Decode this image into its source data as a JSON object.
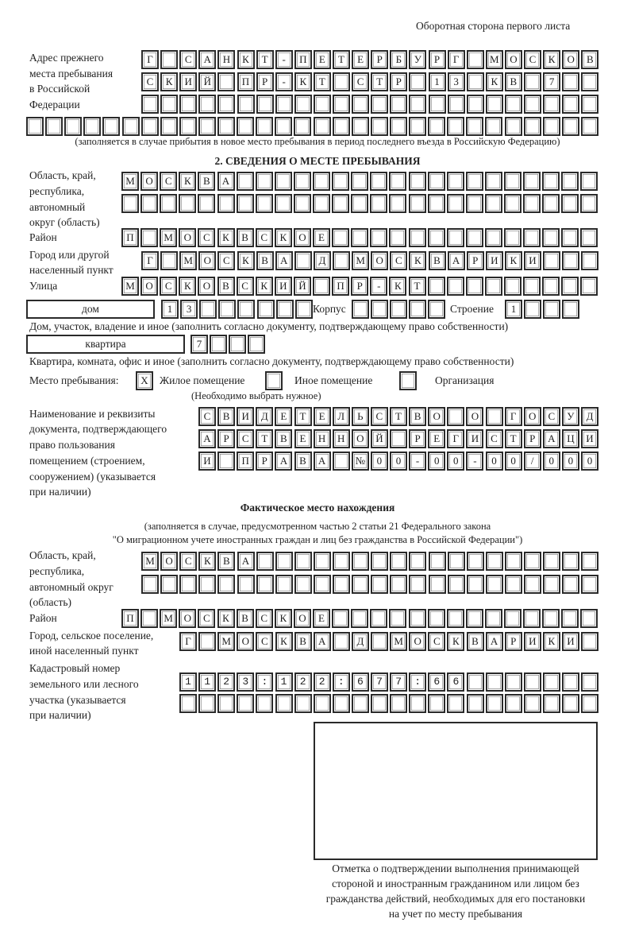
{
  "header": {
    "page_side": "Оборотная сторона первого листа"
  },
  "previous_address": {
    "label": [
      "Адрес прежнего",
      "места пребывания",
      "в Российской",
      "Федерации"
    ],
    "rows": [
      "Г САНКТ-ПЕТЕРБУРГ МОСКОВ",
      "СКИЙ ПР-КТ СТР 13 КВ 7",
      "",
      ""
    ],
    "note": "(заполняется в случае прибытия в новое место пребывания в период последнего въезда в Российскую Федерацию)"
  },
  "stay_place": {
    "section_title": "2. СВЕДЕНИЯ О МЕСТЕ ПРЕБЫВАНИЯ",
    "region_label": [
      "Область, край,",
      "республика,",
      "автономный",
      "округ (область)"
    ],
    "region_rows": [
      "МОСКВА",
      ""
    ],
    "district_label": "Район",
    "district": "П МОСКВСКОЕ",
    "city_label": [
      "Город или другой",
      "населенный пункт"
    ],
    "city": "Г МОСКВА Д МОСКВАРИКИ",
    "street_label": "Улица",
    "street": "МОСКОВСКИЙ ПР-КТ",
    "house_type": "дом",
    "house": "13",
    "building_label": "Корпус",
    "building": "",
    "structure_label": "Строение",
    "structure": "1",
    "house_note": "Дом, участок, владение и иное (заполнить согласно документу, подтверждающему право собственности)",
    "apartment_type": "квартира",
    "apartment": "7",
    "apartment_note": "Квартира, комната, офис и иное (заполнить согласно документу, подтверждающему право собственности)",
    "place_label": "Место пребывания:",
    "options": [
      {
        "label": "Жилое помещение",
        "mark": "X"
      },
      {
        "label": "Иное помещение",
        "mark": ""
      },
      {
        "label": "Организация",
        "mark": ""
      }
    ],
    "choose_note": "(Необходимо выбрать нужное)",
    "document_label": [
      "Наименование и реквизиты",
      "документа, подтверждающего",
      "право пользования",
      "помещением (строением,",
      "сооружением) (указывается",
      "при наличии)"
    ],
    "document_rows": [
      "СВИДЕТЕЛЬСТВО О ГОСУД",
      "АРСТВЕННОЙ РЕГИСТРАЦИ",
      "И ПРАВА №00-00-00/000"
    ]
  },
  "actual_place": {
    "title": "Фактическое место нахождения",
    "note": [
      "(заполняется в случае, предусмотренном частью 2 статьи 21 Федерального закона",
      "\"О миграционном учете иностранных граждан и лиц без гражданства в Российской Федерации\")"
    ],
    "region_label": [
      "Область, край,",
      "республика,",
      "автономный округ",
      "(область)"
    ],
    "region_rows": [
      "МОСКВА",
      ""
    ],
    "district_label": "Район",
    "district": "П МОСКВСКОЕ",
    "city_label": [
      "Город, сельское поселение,",
      "иной населенный пункт"
    ],
    "city": "Г МОСКВА Д МОСКВАРИКИ",
    "cadastral_label": [
      "Кадастровый номер",
      "земельного или лесного",
      "участка (указывается",
      "при наличии)"
    ],
    "cadastral_rows": [
      "1123:122:677:66",
      ""
    ]
  },
  "stamp": {
    "caption": [
      "Отметка о подтверждении выполнения принимающей",
      "стороной и иностранным гражданином или лицом без",
      "гражданства действий, необходимых для его постановки",
      "на учет по месту пребывания"
    ]
  }
}
